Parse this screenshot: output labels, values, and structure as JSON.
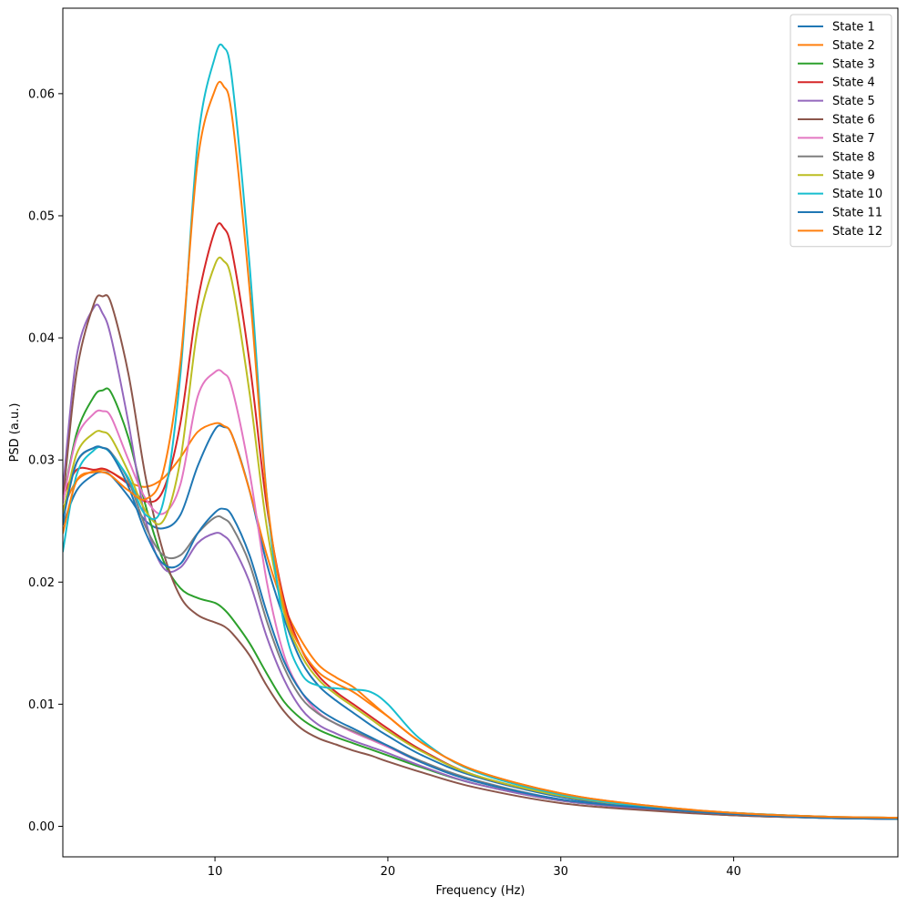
{
  "chart_data": {
    "type": "line",
    "title": "",
    "xlabel": "Frequency (Hz)",
    "ylabel": "PSD (a.u.)",
    "xlim": [
      1.2,
      49.5
    ],
    "ylim": [
      -0.0025,
      0.067
    ],
    "x_ticks": [
      10,
      20,
      30,
      40
    ],
    "x_tick_labels": [
      "10",
      "20",
      "30",
      "40"
    ],
    "y_ticks": [
      0.0,
      0.01,
      0.02,
      0.03,
      0.04,
      0.05,
      0.06
    ],
    "y_tick_labels": [
      "0.00",
      "0.01",
      "0.02",
      "0.03",
      "0.04",
      "0.05",
      "0.06"
    ],
    "grid": false,
    "legend_position": "top-right",
    "x": [
      1.2,
      2,
      3,
      3.5,
      4,
      5,
      6,
      7,
      8,
      9,
      10,
      10.5,
      11,
      12,
      13,
      14,
      15,
      16,
      17,
      18,
      19,
      20,
      22,
      25,
      30,
      35,
      40,
      45,
      49.5
    ],
    "series": [
      {
        "name": "State 1",
        "color": "#1f77b4",
        "values": [
          0.0247,
          0.0275,
          0.0288,
          0.029,
          0.0287,
          0.027,
          0.025,
          0.0244,
          0.0255,
          0.0295,
          0.0325,
          0.0327,
          0.032,
          0.0275,
          0.0215,
          0.017,
          0.0135,
          0.0115,
          0.0103,
          0.0093,
          0.0083,
          0.0074,
          0.0058,
          0.0041,
          0.0024,
          0.0015,
          0.001,
          0.0007,
          0.0006
        ]
      },
      {
        "name": "State 2",
        "color": "#ff7f0e",
        "values": [
          0.026,
          0.0283,
          0.0291,
          0.0292,
          0.029,
          0.0282,
          0.0278,
          0.0285,
          0.0302,
          0.0323,
          0.033,
          0.0328,
          0.032,
          0.0275,
          0.0222,
          0.018,
          0.0152,
          0.0132,
          0.0122,
          0.0114,
          0.0102,
          0.009,
          0.0068,
          0.0046,
          0.0027,
          0.0017,
          0.0011,
          0.0008,
          0.0007
        ]
      },
      {
        "name": "State 3",
        "color": "#2ca02c",
        "values": [
          0.0265,
          0.0322,
          0.0352,
          0.0357,
          0.0355,
          0.0318,
          0.0262,
          0.0218,
          0.0195,
          0.0187,
          0.0183,
          0.0178,
          0.017,
          0.015,
          0.0125,
          0.0102,
          0.0088,
          0.0079,
          0.0073,
          0.0068,
          0.0063,
          0.0058,
          0.0048,
          0.0035,
          0.0021,
          0.0014,
          0.0009,
          0.0007,
          0.0006
        ]
      },
      {
        "name": "State 4",
        "color": "#d62728",
        "values": [
          0.027,
          0.0292,
          0.0292,
          0.0293,
          0.029,
          0.028,
          0.0266,
          0.0275,
          0.033,
          0.043,
          0.0488,
          0.049,
          0.047,
          0.038,
          0.0262,
          0.0185,
          0.0145,
          0.0123,
          0.011,
          0.01,
          0.009,
          0.008,
          0.0062,
          0.0042,
          0.0025,
          0.0016,
          0.0011,
          0.0008,
          0.0006
        ]
      },
      {
        "name": "State 5",
        "color": "#9467bd",
        "values": [
          0.0275,
          0.0385,
          0.0425,
          0.042,
          0.04,
          0.033,
          0.025,
          0.0212,
          0.0212,
          0.0232,
          0.024,
          0.0238,
          0.023,
          0.02,
          0.0155,
          0.012,
          0.0096,
          0.0083,
          0.0076,
          0.007,
          0.0065,
          0.006,
          0.0049,
          0.0035,
          0.0021,
          0.0014,
          0.0009,
          0.0007,
          0.0006
        ]
      },
      {
        "name": "State 6",
        "color": "#8c564b",
        "values": [
          0.0265,
          0.0372,
          0.0428,
          0.0434,
          0.0428,
          0.037,
          0.0285,
          0.0225,
          0.0188,
          0.0173,
          0.0167,
          0.0164,
          0.0158,
          0.014,
          0.0115,
          0.0094,
          0.008,
          0.0072,
          0.0067,
          0.0062,
          0.0058,
          0.0053,
          0.0044,
          0.0032,
          0.0019,
          0.0013,
          0.0009,
          0.0007,
          0.0006
        ]
      },
      {
        "name": "State 7",
        "color": "#e377c2",
        "values": [
          0.0265,
          0.0318,
          0.0338,
          0.034,
          0.0335,
          0.03,
          0.0268,
          0.0256,
          0.028,
          0.0352,
          0.0372,
          0.0371,
          0.0358,
          0.029,
          0.02,
          0.014,
          0.011,
          0.0093,
          0.0084,
          0.0077,
          0.0071,
          0.0065,
          0.0052,
          0.0037,
          0.0022,
          0.0015,
          0.001,
          0.0007,
          0.0006
        ]
      },
      {
        "name": "State 8",
        "color": "#7f7f7f",
        "values": [
          0.0255,
          0.0298,
          0.031,
          0.031,
          0.0306,
          0.0283,
          0.0245,
          0.0222,
          0.0222,
          0.024,
          0.0253,
          0.0252,
          0.0245,
          0.0215,
          0.0168,
          0.013,
          0.0105,
          0.0092,
          0.0084,
          0.0078,
          0.0072,
          0.0066,
          0.0053,
          0.0038,
          0.0022,
          0.0015,
          0.001,
          0.0007,
          0.0006
        ]
      },
      {
        "name": "State 9",
        "color": "#bcbd22",
        "values": [
          0.0255,
          0.0305,
          0.0322,
          0.0323,
          0.0318,
          0.029,
          0.0258,
          0.025,
          0.03,
          0.0408,
          0.046,
          0.0463,
          0.0445,
          0.0355,
          0.0245,
          0.0175,
          0.014,
          0.012,
          0.0108,
          0.0098,
          0.0088,
          0.0078,
          0.0061,
          0.0042,
          0.0025,
          0.0016,
          0.0011,
          0.0008,
          0.0006
        ]
      },
      {
        "name": "State 10",
        "color": "#17becf",
        "values": [
          0.0225,
          0.0288,
          0.0308,
          0.031,
          0.0305,
          0.0285,
          0.0255,
          0.0265,
          0.037,
          0.056,
          0.063,
          0.0638,
          0.061,
          0.046,
          0.027,
          0.0165,
          0.0125,
          0.0115,
          0.0113,
          0.0112,
          0.011,
          0.01,
          0.007,
          0.0045,
          0.0026,
          0.0016,
          0.0011,
          0.0008,
          0.0007
        ]
      },
      {
        "name": "State 11",
        "color": "#1f77b4",
        "values": [
          0.025,
          0.0298,
          0.031,
          0.031,
          0.0305,
          0.0278,
          0.024,
          0.0215,
          0.0215,
          0.024,
          0.0257,
          0.026,
          0.0254,
          0.0222,
          0.0175,
          0.0135,
          0.011,
          0.0096,
          0.0087,
          0.008,
          0.0073,
          0.0066,
          0.0052,
          0.0037,
          0.0022,
          0.0015,
          0.001,
          0.0007,
          0.0006
        ]
      },
      {
        "name": "State 12",
        "color": "#ff7f0e",
        "values": [
          0.024,
          0.0283,
          0.029,
          0.029,
          0.0287,
          0.0275,
          0.0268,
          0.029,
          0.038,
          0.0545,
          0.0603,
          0.0606,
          0.058,
          0.044,
          0.027,
          0.018,
          0.0145,
          0.0126,
          0.0117,
          0.011,
          0.01,
          0.009,
          0.0068,
          0.0046,
          0.0027,
          0.0017,
          0.0011,
          0.0008,
          0.0007
        ]
      }
    ]
  }
}
